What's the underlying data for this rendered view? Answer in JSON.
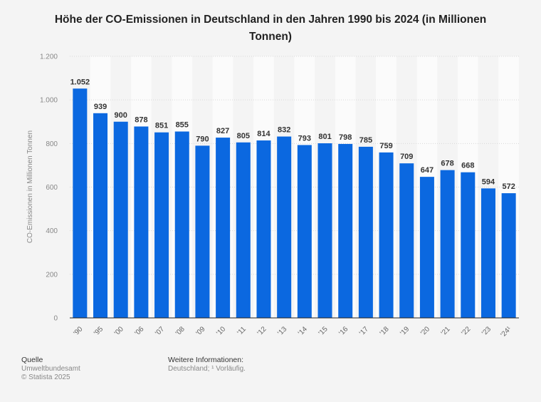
{
  "chart_data": {
    "type": "bar",
    "title": "Höhe der CO-Emissionen in Deutschland in den Jahren 1990 bis 2024 (in Millionen Tonnen)",
    "xlabel": "",
    "ylabel": "CO-Emissionen in Millionen Tonnen",
    "ylim": [
      0,
      1200
    ],
    "yticks": [
      0,
      200,
      400,
      600,
      800,
      1000,
      1200
    ],
    "ytick_labels": [
      "0",
      "200",
      "400",
      "600",
      "800",
      "1.000",
      "1.200"
    ],
    "grid": true,
    "categories": [
      "'90",
      "'95",
      "'00",
      "'06",
      "'07",
      "'08",
      "'09",
      "'10",
      "'11",
      "'12",
      "'13",
      "'14",
      "'15",
      "'16",
      "'17",
      "'18",
      "'19",
      "'20",
      "'21",
      "'22",
      "'23",
      "'24¹"
    ],
    "values": [
      1052,
      939,
      900,
      878,
      851,
      855,
      790,
      827,
      805,
      814,
      832,
      793,
      801,
      798,
      785,
      759,
      709,
      647,
      678,
      668,
      594,
      572
    ],
    "value_labels": [
      "1.052",
      "939",
      "900",
      "878",
      "851",
      "855",
      "790",
      "827",
      "805",
      "814",
      "832",
      "793",
      "801",
      "798",
      "785",
      "759",
      "709",
      "647",
      "678",
      "668",
      "594",
      "572"
    ],
    "bar_color": "#0b68e0"
  },
  "footer": {
    "source_heading": "Quelle",
    "source": "Umweltbundesamt",
    "copyright": "© Statista 2025",
    "info_heading": "Weitere Informationen:",
    "info": "Deutschland; ¹ Vorläufig."
  }
}
